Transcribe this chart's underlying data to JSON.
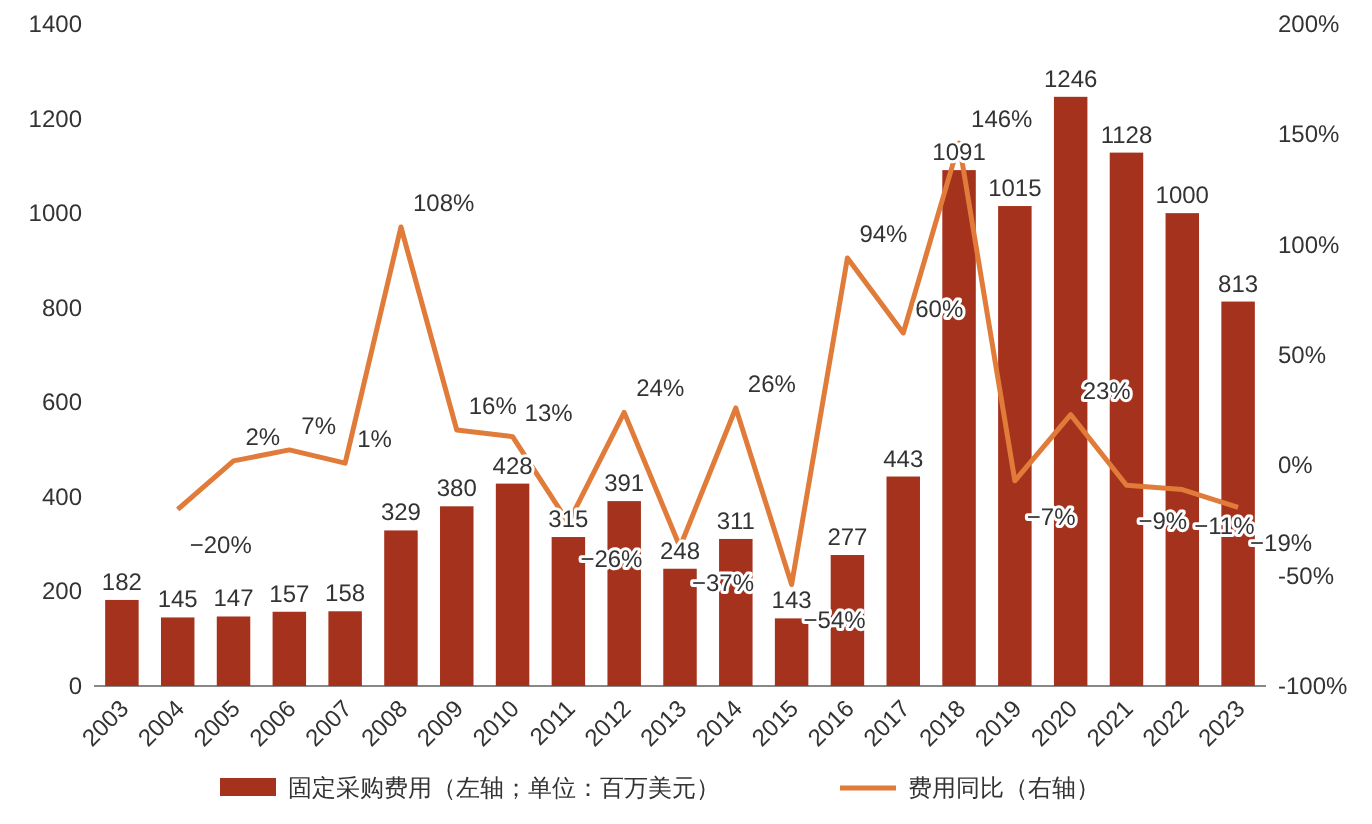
{
  "chart_data": {
    "type": "bar",
    "categories": [
      "2003",
      "2004",
      "2005",
      "2006",
      "2007",
      "2008",
      "2009",
      "2010",
      "2011",
      "2012",
      "2013",
      "2014",
      "2015",
      "2016",
      "2017",
      "2018",
      "2019",
      "2020",
      "2021",
      "2022",
      "2023"
    ],
    "series": [
      {
        "name": "固定采购费用（左轴；单位：百万美元）",
        "color": "#a5321c",
        "values": [
          182,
          145,
          147,
          157,
          158,
          329,
          380,
          428,
          315,
          391,
          248,
          311,
          143,
          277,
          443,
          1091,
          1015,
          1246,
          1128,
          1000,
          813
        ],
        "value_labels": [
          "182",
          "145",
          "147",
          "157",
          "158",
          "329",
          "380",
          "428",
          "315",
          "391",
          "248",
          "311",
          "143",
          "277",
          "443",
          "1091",
          "1015",
          "1246",
          "1128",
          "1000",
          "813"
        ]
      },
      {
        "name": "费用同比（右轴）",
        "type": "line",
        "axis": "y2",
        "color": "#e07b39",
        "values": [
          null,
          -20,
          2,
          7,
          1,
          108,
          16,
          13,
          -26,
          24,
          -37,
          26,
          -54,
          94,
          60,
          146,
          -7,
          23,
          -9,
          -11,
          -19
        ],
        "value_labels": [
          null,
          "−20%",
          "2%",
          "7%",
          "1%",
          "108%",
          "16%",
          "13%",
          "−26%",
          "24%",
          "−37%",
          "26%",
          "−54%",
          "94%",
          "60%",
          "146%",
          "−7%",
          "23%",
          "−9%",
          "−11%",
          "−19%"
        ]
      }
    ],
    "ylim": [
      0,
      1400
    ],
    "yticks": [
      0,
      200,
      400,
      600,
      800,
      1000,
      1200,
      1400
    ],
    "y2lim": [
      -100,
      200
    ],
    "y2ticks": [
      {
        "value": -100,
        "label": "-100%"
      },
      {
        "value": -50,
        "label": "-50%"
      },
      {
        "value": 0,
        "label": "0%"
      },
      {
        "value": 50,
        "label": "50%"
      },
      {
        "value": 100,
        "label": "100%"
      },
      {
        "value": 150,
        "label": "150%"
      },
      {
        "value": 200,
        "label": "200%"
      }
    ],
    "legend": "bottom",
    "grid": false,
    "marker": "none"
  }
}
